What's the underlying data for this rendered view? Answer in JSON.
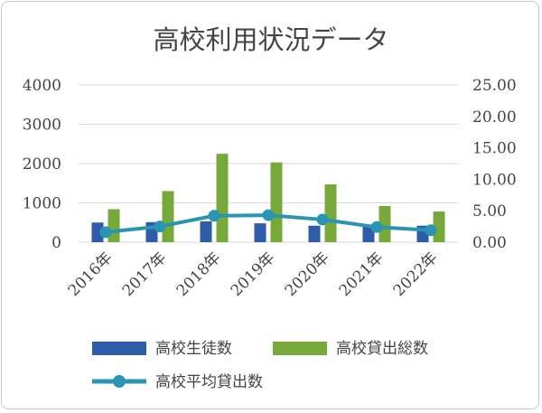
{
  "chart_data": {
    "type": "bar",
    "title": "高校利用状況データ",
    "categories": [
      "2016年",
      "2017年",
      "2018年",
      "2019年",
      "2020年",
      "2021年",
      "2022年"
    ],
    "series": [
      {
        "name": "高校生徒数",
        "type": "bar",
        "axis": "left",
        "color": "#2e5ca8",
        "values": [
          500,
          510,
          530,
          480,
          420,
          420,
          420
        ]
      },
      {
        "name": "高校貸出総数",
        "type": "bar",
        "axis": "left",
        "color": "#76a83a",
        "values": [
          840,
          1300,
          2250,
          2030,
          1470,
          920,
          780
        ]
      },
      {
        "name": "高校平均貸出数",
        "type": "line",
        "axis": "right",
        "color": "#2a95b2",
        "values": [
          1.6,
          2.5,
          4.2,
          4.3,
          3.6,
          2.4,
          1.9
        ]
      }
    ],
    "y_left": {
      "min": 0,
      "max": 4000,
      "ticks": [
        "0",
        "1000",
        "2000",
        "3000",
        "4000"
      ]
    },
    "y_right": {
      "min": 0,
      "max": 25,
      "ticks": [
        "0.00",
        "5.00",
        "10.00",
        "15.00",
        "20.00",
        "25.00"
      ]
    },
    "grid": true,
    "legend_position": "bottom"
  }
}
